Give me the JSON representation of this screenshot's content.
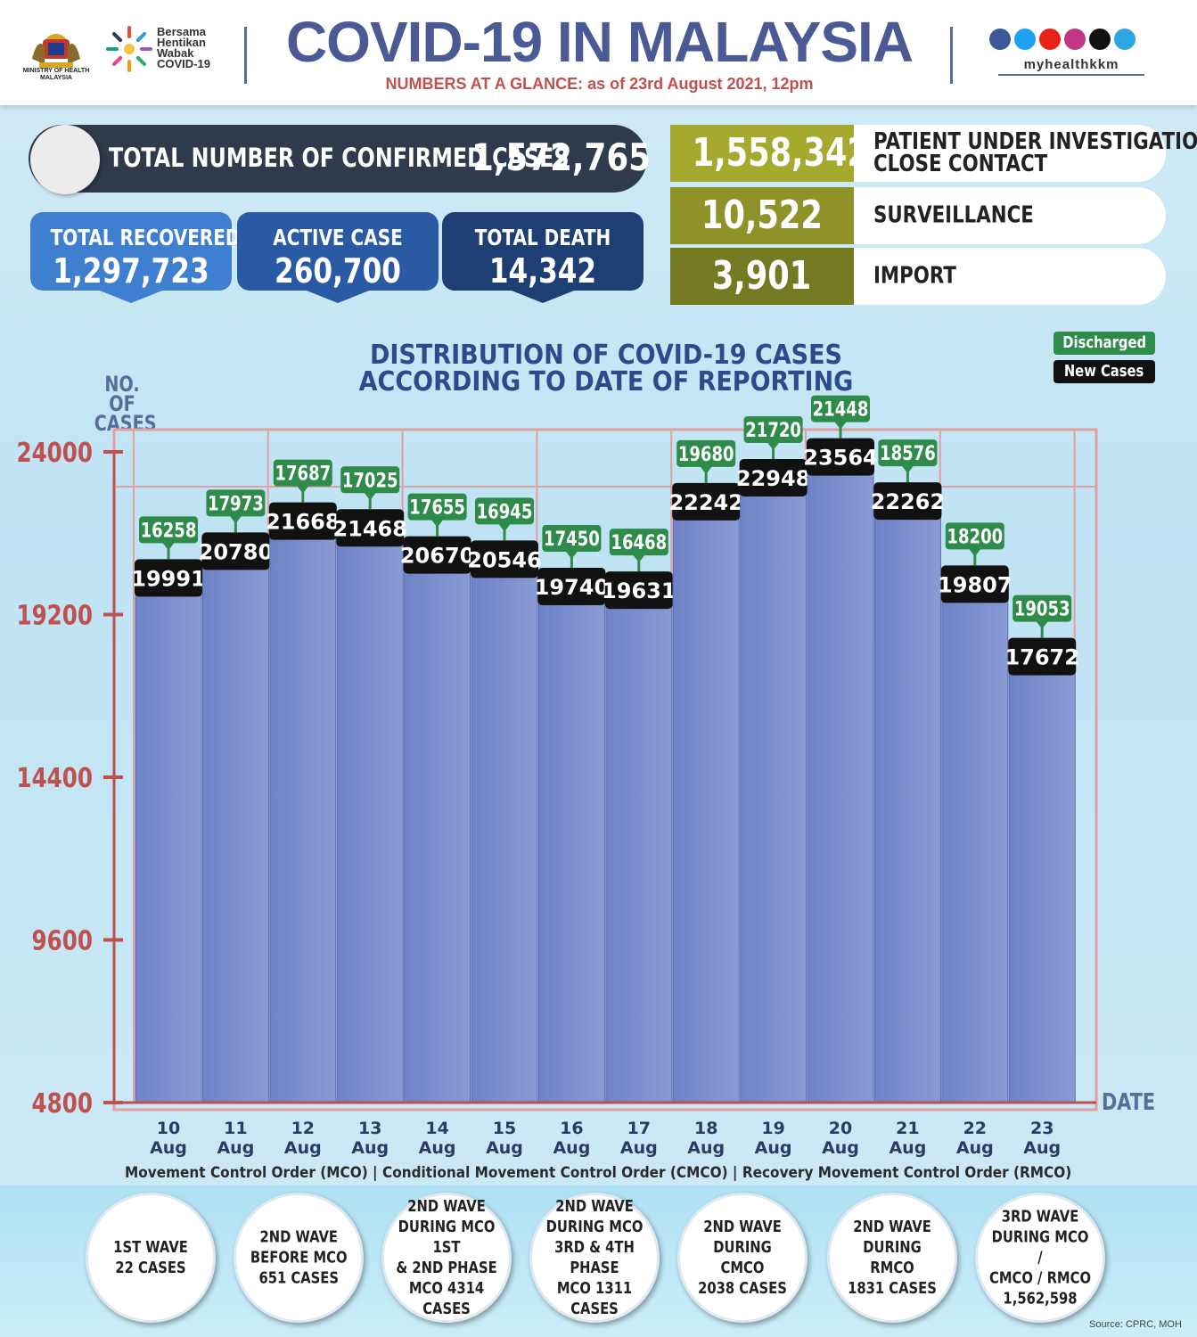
{
  "header": {
    "ministry_caption": "MINISTRY OF HEALTH MALAYSIA",
    "campaign_lines": [
      "Bersama",
      "Hentikan",
      "Wabak",
      "COVID-19"
    ],
    "title": "COVID-19 IN MALAYSIA",
    "subtitle": "NUMBERS AT A GLANCE: as of 23rd August 2021, 12pm",
    "social_handle": "myhealthkkm",
    "social_icons": [
      "facebook-icon",
      "twitter-icon",
      "youtube-icon",
      "instagram-icon",
      "tiktok-icon",
      "telegram-icon"
    ]
  },
  "confirmed": {
    "label": "TOTAL NUMBER OF CONFIRMED CASES",
    "value": "1,572,765"
  },
  "cards": [
    {
      "label": "TOTAL RECOVERED",
      "value": "1,297,723",
      "color": "#3f7fd0"
    },
    {
      "label": "ACTIVE CASE",
      "value": "260,700",
      "color": "#2a5aa3"
    },
    {
      "label": "TOTAL DEATH",
      "value": "14,342",
      "color": "#1e3f74"
    }
  ],
  "categories": [
    {
      "value": "1,558,342",
      "label": "PATIENT UNDER INVESTIGATION /",
      "label2": "CLOSE CONTACT",
      "color": "#a5a92e"
    },
    {
      "value": "10,522",
      "label": "SURVEILLANCE",
      "label2": "",
      "color": "#8e9228"
    },
    {
      "value": "3,901",
      "label": "IMPORT",
      "label2": "",
      "color": "#747a22"
    }
  ],
  "chart_title": [
    "DISTRIBUTION OF COVID-19 CASES",
    "ACCORDING TO DATE OF REPORTING"
  ],
  "chart_data": {
    "type": "bar",
    "title": "DISTRIBUTION OF COVID-19 CASES ACCORDING TO DATE OF REPORTING",
    "ylabel": [
      "NO. OF",
      "CASES"
    ],
    "xlabel": "DATE",
    "ylim": [
      4800,
      24000
    ],
    "yticks": [
      4800,
      9600,
      14400,
      19200,
      24000
    ],
    "categories": [
      [
        "10",
        "Aug"
      ],
      [
        "11",
        "Aug"
      ],
      [
        "12",
        "Aug"
      ],
      [
        "13",
        "Aug"
      ],
      [
        "14",
        "Aug"
      ],
      [
        "15",
        "Aug"
      ],
      [
        "16",
        "Aug"
      ],
      [
        "17",
        "Aug"
      ],
      [
        "18",
        "Aug"
      ],
      [
        "19",
        "Aug"
      ],
      [
        "20",
        "Aug"
      ],
      [
        "21",
        "Aug"
      ],
      [
        "22",
        "Aug"
      ],
      [
        "23",
        "Aug"
      ]
    ],
    "series": [
      {
        "name": "New Cases",
        "values": [
          19991,
          20780,
          21668,
          21468,
          20670,
          20546,
          19740,
          19631,
          22242,
          22948,
          23564,
          22262,
          19807,
          17672
        ],
        "color": "#111111",
        "bar_color": "#7385c8"
      },
      {
        "name": "Discharged",
        "values": [
          16258,
          17973,
          17687,
          17025,
          17655,
          16945,
          17450,
          16468,
          19680,
          21720,
          21448,
          18576,
          18200,
          19053
        ],
        "color": "#2e8b4a"
      }
    ],
    "legend": [
      "Discharged",
      "New Cases"
    ],
    "legend_position": "top-right",
    "grid": true
  },
  "mco_note": "Movement Control Order (MCO) | Conditional Movement Control Order (CMCO) | Recovery Movement Control Order (RMCO)",
  "waves": [
    "1ST WAVE\n22 CASES",
    "2ND WAVE\nBEFORE MCO\n651 CASES",
    "2ND WAVE\nDURING MCO 1ST\n& 2ND PHASE\nMCO 4314\nCASES",
    "2ND WAVE\nDURING MCO\n3RD & 4TH PHASE\nMCO 1311\nCASES",
    "2ND WAVE\nDURING CMCO\n2038 CASES",
    "2ND WAVE\nDURING RMCO\n1831 CASES",
    "3RD WAVE\nDURING MCO /\nCMCO / RMCO\n1,562,598"
  ],
  "source": "Source: CPRC, MOH"
}
